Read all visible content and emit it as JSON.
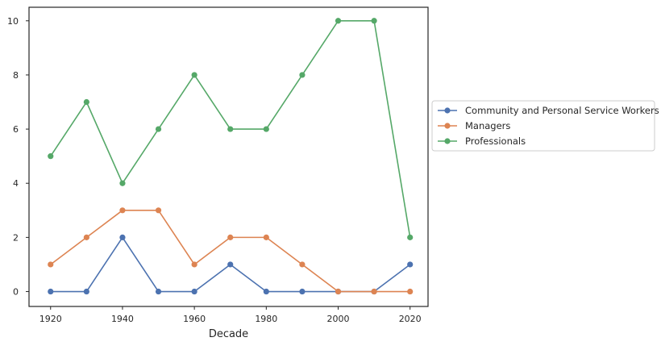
{
  "chart_data": {
    "type": "line",
    "title": "",
    "xlabel": "Decade",
    "ylabel": "",
    "x": [
      1920,
      1930,
      1940,
      1950,
      1960,
      1970,
      1980,
      1990,
      2000,
      2010,
      2020
    ],
    "xticks": [
      1920,
      1940,
      1960,
      1980,
      2000,
      2020
    ],
    "yticks": [
      0,
      2,
      4,
      6,
      8,
      10
    ],
    "xlim": [
      1914,
      2025
    ],
    "ylim": [
      -0.55,
      10.5
    ],
    "grid": false,
    "legend_position": "outside-right",
    "series": [
      {
        "name": "Community and Personal Service Workers",
        "color": "#4c72b0",
        "values": [
          0,
          0,
          2,
          0,
          0,
          1,
          0,
          0,
          0,
          0,
          1
        ]
      },
      {
        "name": "Managers",
        "color": "#dd8452",
        "values": [
          1,
          2,
          3,
          3,
          1,
          2,
          2,
          1,
          0,
          0,
          0
        ]
      },
      {
        "name": "Professionals",
        "color": "#55a868",
        "values": [
          5,
          7,
          4,
          6,
          8,
          6,
          6,
          8,
          10,
          10,
          2
        ]
      }
    ]
  }
}
